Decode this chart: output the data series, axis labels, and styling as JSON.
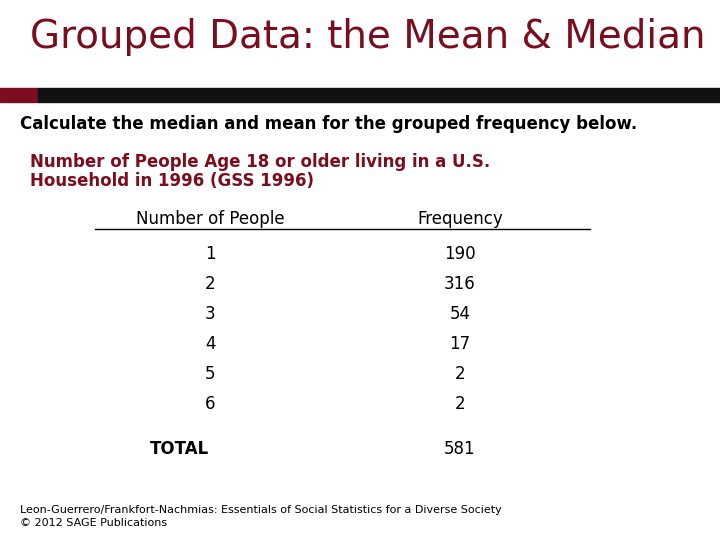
{
  "title": "Grouped Data: the Mean & Median",
  "title_color": "#7B0D1E",
  "title_fontsize": 28,
  "bar_color_left": "#7B0D1E",
  "bar_color_right": "#111111",
  "subtitle": "Calculate the median and mean for the grouped frequency below.",
  "subtitle_fontsize": 12,
  "table_title_line1": "Number of People Age 18 or older living in a U.S.",
  "table_title_line2": "Household in 1996 (GSS 1996)",
  "table_title_color": "#7B0D1E",
  "table_title_fontsize": 12,
  "col1_header": "Number of People",
  "col2_header": "Frequency",
  "col1_values": [
    "1",
    "2",
    "3",
    "4",
    "5",
    "6"
  ],
  "col2_values": [
    "190",
    "316",
    "54",
    "17",
    "2",
    "2"
  ],
  "total_label": "TOTAL",
  "total_value": "581",
  "footer_line1": "Leon-Guerrero/Frankfort-Nachmias: Essentials of Social Statistics for a Diverse Society",
  "footer_line2": "© 2012 SAGE Publications",
  "footer_fontsize": 8,
  "bg_color": "#ffffff",
  "text_color": "#000000",
  "table_fontsize": 12
}
